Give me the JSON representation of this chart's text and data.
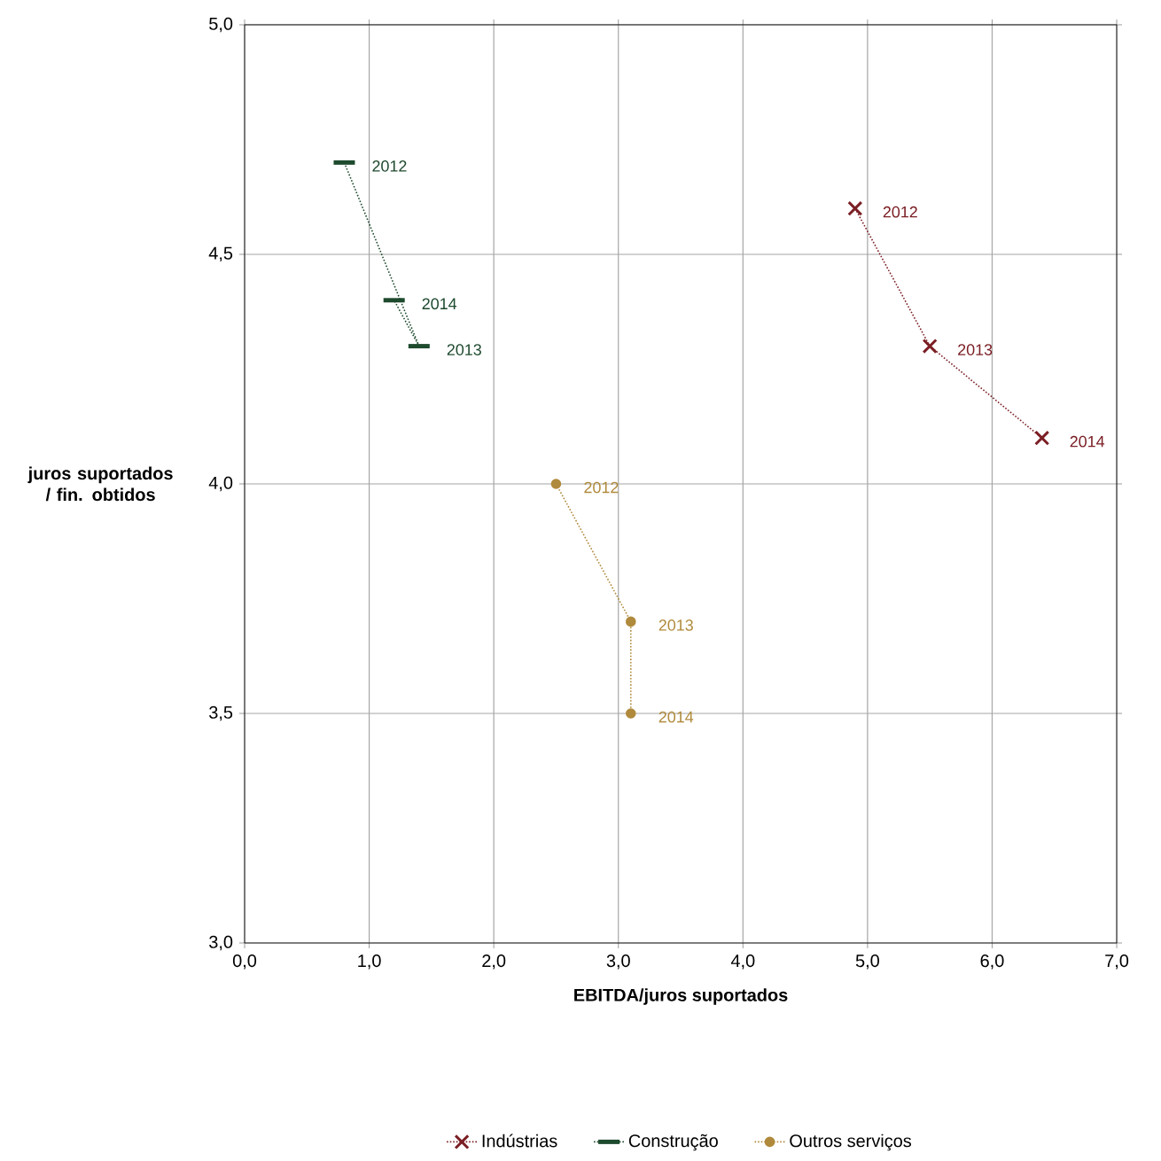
{
  "chart_data": {
    "type": "line",
    "xlabel": "EBITDA/juros suportados",
    "ylabel": "juros suportados / fin. obtidos",
    "xlim": [
      0,
      7
    ],
    "xticks": [
      {
        "value": 0,
        "label": "0,0"
      },
      {
        "value": 1,
        "label": "1,0"
      },
      {
        "value": 2,
        "label": "2,0"
      },
      {
        "value": 3,
        "label": "3,0"
      },
      {
        "value": 4,
        "label": "4,0"
      },
      {
        "value": 5,
        "label": "5,0"
      },
      {
        "value": 6,
        "label": "6,0"
      },
      {
        "value": 7,
        "label": "7,0"
      }
    ],
    "ylim": [
      3,
      5
    ],
    "yticks": [
      {
        "value": 3,
        "label": "3,0"
      },
      {
        "value": 3.5,
        "label": "3,5"
      },
      {
        "value": 4,
        "label": "4,0"
      },
      {
        "value": 4.5,
        "label": "4,5"
      },
      {
        "value": 5,
        "label": "5,0"
      }
    ],
    "grid": true,
    "legend": "bottom",
    "line_style": "dotted",
    "series": [
      {
        "name": "Indústrias",
        "color": "#7b1f25",
        "marker": "cross",
        "x": [
          4.9,
          5.5,
          6.4
        ],
        "values": [
          4.6,
          4.3,
          4.1
        ]
      },
      {
        "name": "Construção",
        "color": "#1e4a2e",
        "x": [
          0.8,
          1.4,
          1.2
        ],
        "values": [
          4.7,
          4.3,
          4.4
        ]
      },
      {
        "name": "Outros serviços",
        "color": "#b08a3c",
        "marker": "circle",
        "x": [
          2.5,
          3.1,
          3.1
        ],
        "values": [
          4.0,
          3.7,
          3.5
        ]
      }
    ],
    "annotations": [
      {
        "text": "2012",
        "x": 4.9,
        "y": 4.6
      },
      {
        "text": "2013",
        "x": 5.5,
        "y": 4.3
      },
      {
        "text": "2014",
        "x": 6.4,
        "y": 4.1
      },
      {
        "text": "2012",
        "x": 0.8,
        "y": 4.7
      },
      {
        "text": "2013",
        "x": 1.4,
        "y": 4.3
      },
      {
        "text": "2014",
        "x": 1.2,
        "y": 4.4
      },
      {
        "text": "2012",
        "x": 2.5,
        "y": 4.0
      },
      {
        "text": "2013",
        "x": 3.1,
        "y": 3.7
      },
      {
        "text": "2014",
        "x": 3.1,
        "y": 3.5
      }
    ]
  }
}
